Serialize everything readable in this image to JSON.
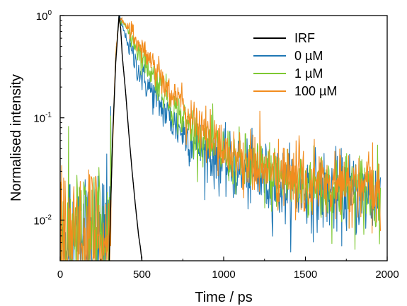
{
  "chart_data": {
    "type": "line",
    "xlabel": "Time / ps",
    "ylabel": "Normalised intensity",
    "xlim": [
      0,
      2000
    ],
    "ylim": [
      0.004,
      1
    ],
    "yscale": "log",
    "x_ticks": [
      {
        "value": 0,
        "label": "0"
      },
      {
        "value": 500,
        "label": "500"
      },
      {
        "value": 1000,
        "label": "1000"
      },
      {
        "value": 1500,
        "label": "1500"
      },
      {
        "value": 2000,
        "label": "2000"
      }
    ],
    "y_ticks": [
      {
        "value": 0.01,
        "label": "10-2",
        "base": "10",
        "exp": "-2"
      },
      {
        "value": 0.1,
        "label": "10-1",
        "base": "10",
        "exp": "-1"
      },
      {
        "value": 1,
        "label": "100",
        "base": "10",
        "exp": "0"
      }
    ],
    "grid": false,
    "legend_position": "top-right",
    "series": [
      {
        "name": "IRF",
        "color": "#000000",
        "x": [
          300,
          320,
          340,
          360,
          370,
          380,
          400,
          420,
          440,
          460,
          480,
          490,
          500
        ],
        "y": [
          0.004,
          0.06,
          0.35,
          1.0,
          0.75,
          0.4,
          0.18,
          0.07,
          0.03,
          0.014,
          0.007,
          0.0055,
          0.004
        ]
      },
      {
        "name": "0 µM",
        "color": "#1f77b4",
        "x": [
          0,
          100,
          200,
          300,
          320,
          340,
          360,
          400,
          450,
          500,
          550,
          600,
          700,
          800,
          900,
          1000,
          1100,
          1200,
          1300,
          1400,
          1500,
          1600,
          1700,
          1800,
          1900,
          1960
        ],
        "y": [
          0.006,
          0.006,
          0.006,
          0.006,
          0.05,
          0.4,
          1.0,
          0.62,
          0.38,
          0.25,
          0.19,
          0.14,
          0.085,
          0.06,
          0.045,
          0.035,
          0.03,
          0.026,
          0.023,
          0.021,
          0.02,
          0.019,
          0.018,
          0.018,
          0.017,
          0.017
        ]
      },
      {
        "name": "1 µM",
        "color": "#7dc832",
        "x": [
          0,
          100,
          200,
          300,
          320,
          340,
          360,
          400,
          450,
          500,
          550,
          600,
          700,
          800,
          900,
          1000,
          1100,
          1200,
          1300,
          1400,
          1500,
          1600,
          1700,
          1800,
          1900,
          1960
        ],
        "y": [
          0.006,
          0.006,
          0.006,
          0.006,
          0.05,
          0.4,
          1.0,
          0.78,
          0.56,
          0.4,
          0.29,
          0.22,
          0.12,
          0.08,
          0.058,
          0.045,
          0.036,
          0.031,
          0.027,
          0.024,
          0.022,
          0.021,
          0.02,
          0.019,
          0.019,
          0.018
        ]
      },
      {
        "name": "100 µM",
        "color": "#f28c1e",
        "x": [
          0,
          100,
          200,
          300,
          320,
          340,
          360,
          400,
          450,
          500,
          550,
          600,
          700,
          800,
          900,
          1000,
          1100,
          1200,
          1300,
          1400,
          1500,
          1600,
          1700,
          1800,
          1900,
          1960
        ],
        "y": [
          0.006,
          0.006,
          0.006,
          0.006,
          0.05,
          0.4,
          1.0,
          0.82,
          0.63,
          0.48,
          0.37,
          0.28,
          0.16,
          0.1,
          0.068,
          0.05,
          0.04,
          0.034,
          0.029,
          0.026,
          0.024,
          0.022,
          0.021,
          0.02,
          0.019,
          0.019
        ]
      }
    ]
  }
}
